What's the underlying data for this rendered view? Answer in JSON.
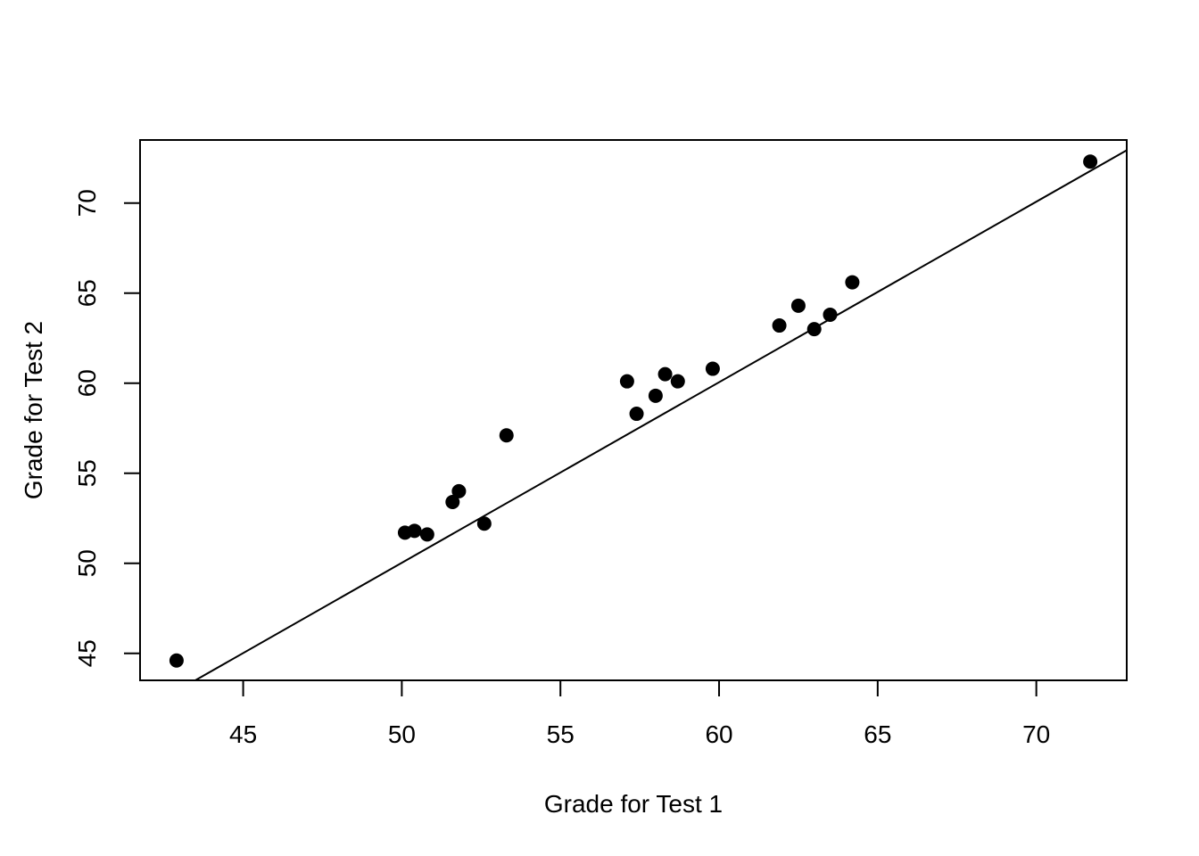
{
  "chart_data": {
    "type": "scatter",
    "title": "",
    "xlabel": "Grade for Test 1",
    "ylabel": "Grade for Test 2",
    "xlim": [
      41.75,
      72.85
    ],
    "ylim": [
      43.5,
      73.5
    ],
    "x_ticks": [
      45,
      50,
      55,
      60,
      65,
      70
    ],
    "y_ticks": [
      45,
      50,
      55,
      60,
      65,
      70
    ],
    "x_tick_labels": [
      "45",
      "50",
      "55",
      "60",
      "65",
      "70"
    ],
    "y_tick_labels": [
      "45",
      "50",
      "55",
      "60",
      "65",
      "70"
    ],
    "grid": false,
    "legend": "none",
    "point_color": "#000000",
    "points": [
      {
        "x": 42.9,
        "y": 44.6
      },
      {
        "x": 50.1,
        "y": 51.7
      },
      {
        "x": 50.4,
        "y": 51.8
      },
      {
        "x": 50.8,
        "y": 51.6
      },
      {
        "x": 51.6,
        "y": 53.4
      },
      {
        "x": 51.8,
        "y": 54.0
      },
      {
        "x": 52.6,
        "y": 52.2
      },
      {
        "x": 53.3,
        "y": 57.1
      },
      {
        "x": 57.1,
        "y": 60.1
      },
      {
        "x": 57.4,
        "y": 58.3
      },
      {
        "x": 58.0,
        "y": 59.3
      },
      {
        "x": 58.3,
        "y": 60.5
      },
      {
        "x": 58.7,
        "y": 60.1
      },
      {
        "x": 59.8,
        "y": 60.8
      },
      {
        "x": 61.9,
        "y": 63.2
      },
      {
        "x": 62.5,
        "y": 64.3
      },
      {
        "x": 63.0,
        "y": 63.0
      },
      {
        "x": 63.5,
        "y": 63.8
      },
      {
        "x": 64.2,
        "y": 65.6
      },
      {
        "x": 71.7,
        "y": 72.3
      }
    ],
    "fit_line": {
      "from": {
        "x": 43.49,
        "y": 43.5
      },
      "to": {
        "x": 72.85,
        "y": 72.93
      }
    }
  }
}
